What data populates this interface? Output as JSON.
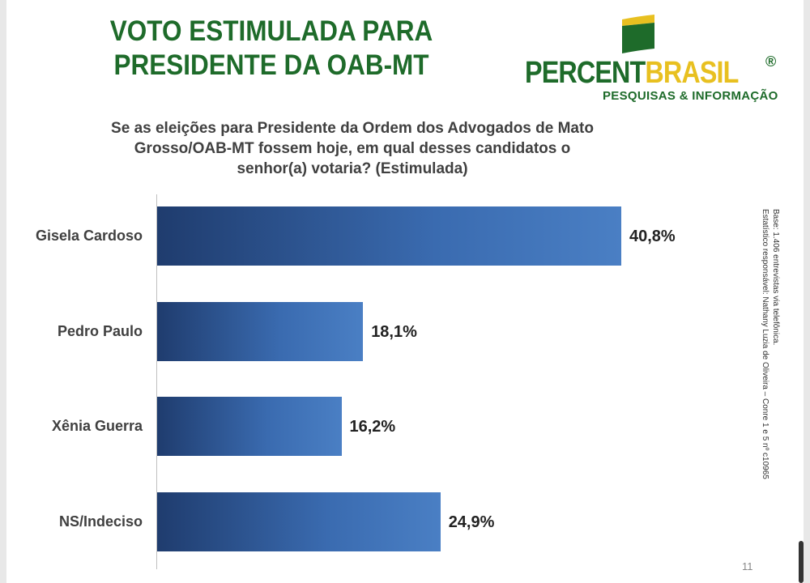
{
  "header": {
    "title_line1": "VOTO ESTIMULADA PARA",
    "title_line2": "PRESIDENTE DA OAB-MT",
    "logo": {
      "part1": "PERCENT",
      "part2": "BRASIL",
      "registered": "®",
      "tagline": "PESQUISAS & INFORMAÇÃO"
    }
  },
  "note": {
    "line1": "Base: 1.406 entrevistas via telefônica.",
    "line2": "Estatístico responsável: Nathany Luzia de Oliveira – Conre 1 e 5 nº c10965"
  },
  "page_number": "11",
  "colors": {
    "title": "#1e6b2a",
    "bar": "#2e5597",
    "accent": "#e8c020"
  },
  "chart_data": {
    "type": "bar",
    "orientation": "horizontal",
    "title": "Se as eleições para Presidente da Ordem dos Advogados de Mato Grosso/OAB-MT fossem hoje, em qual desses candidatos o senhor(a) votaria? (Estimulada)",
    "categories": [
      "Gisela Cardoso",
      "Pedro Paulo",
      "Xênia Guerra",
      "NS/Indeciso"
    ],
    "values": [
      40.8,
      18.1,
      16.2,
      24.9
    ],
    "value_labels": [
      "40,8%",
      "18,1%",
      "16,2%",
      "24,9%"
    ],
    "xlim": [
      0,
      45
    ],
    "grid": false,
    "legend": "none"
  }
}
